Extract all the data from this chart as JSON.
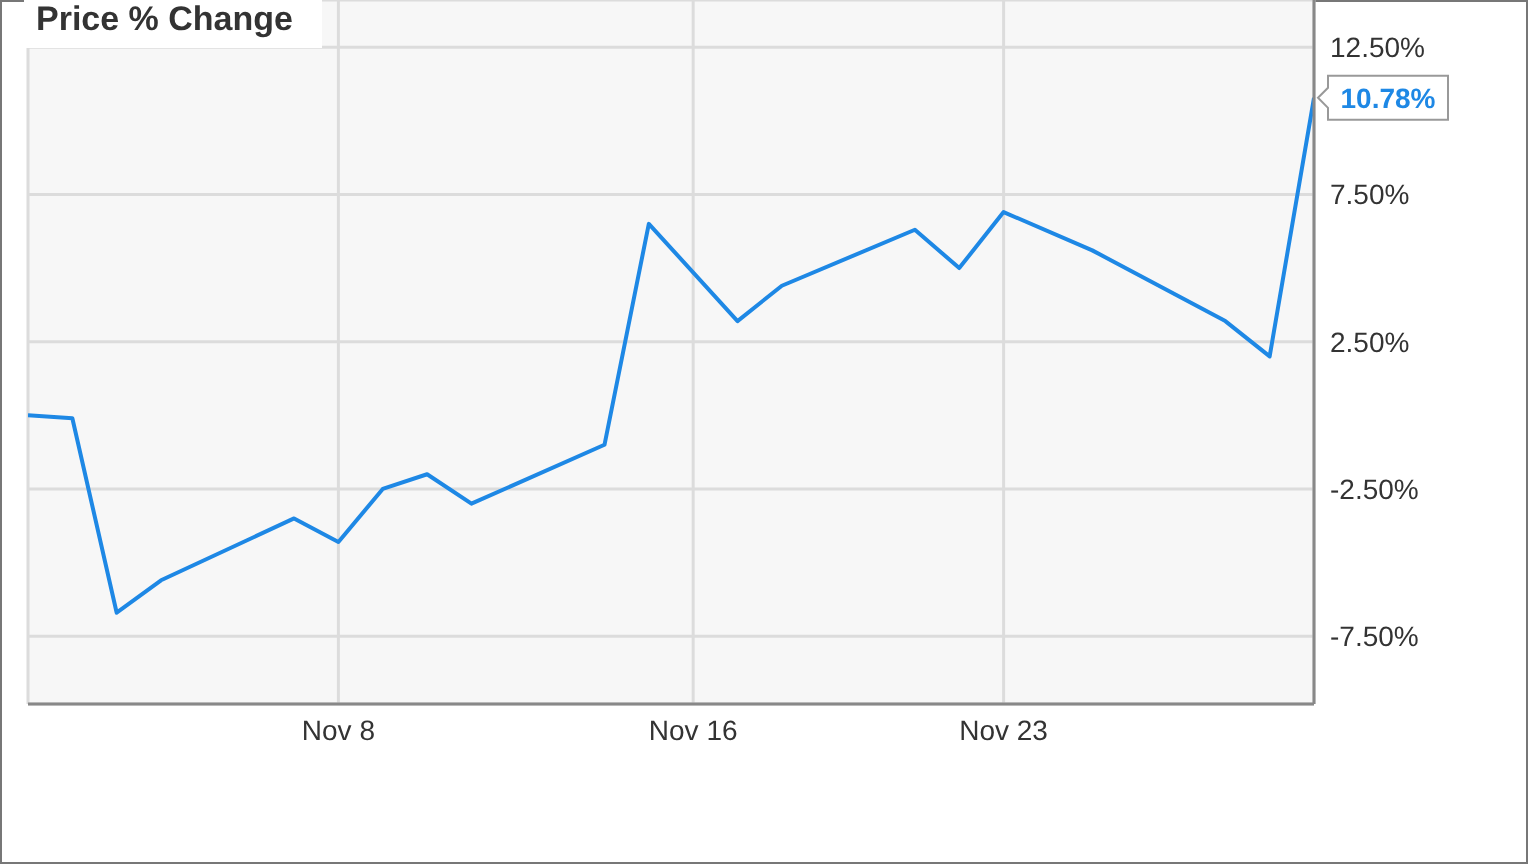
{
  "chart_data": {
    "type": "line",
    "title": "Price % Change",
    "x": [
      "--11-01",
      "--11-02",
      "--11-03",
      "--11-04",
      "--11-07",
      "--11-08",
      "--11-09",
      "--11-10",
      "--11-11",
      "--11-14",
      "--11-15",
      "--11-17",
      "--11-18",
      "--11-21",
      "--11-22",
      "--11-23",
      "--11-25",
      "--11-28",
      "--11-29",
      "--11-30"
    ],
    "series": [
      {
        "color": "#1e88e5",
        "values": [
          0.0,
          -0.1,
          -6.7,
          -5.6,
          -3.5,
          -4.3,
          -2.5,
          -2.0,
          -3.0,
          -1.0,
          6.5,
          3.2,
          4.4,
          6.3,
          5.0,
          6.9,
          5.6,
          3.2,
          2.0,
          10.78
        ]
      }
    ],
    "xlim": [
      "--11-01",
      "--11-30"
    ],
    "xticks": [
      {
        "value": "--11-08",
        "label": "Nov 8"
      },
      {
        "value": "--11-16",
        "label": "Nov 16"
      },
      {
        "value": "--11-23",
        "label": "Nov 23"
      }
    ],
    "ylim": [
      -9.8,
      14.1
    ],
    "yticks": [
      {
        "value": -7.5,
        "label": "-7.50%"
      },
      {
        "value": -2.5,
        "label": "-2.50%"
      },
      {
        "value": 2.5,
        "label": "2.50%"
      },
      {
        "value": 7.5,
        "label": "7.50%"
      },
      {
        "value": 12.5,
        "label": "12.50%"
      }
    ],
    "annotations": [
      {
        "text": "10.78%",
        "x": "--11-30",
        "y": 10.78
      }
    ],
    "grid": true,
    "marker": "none",
    "line_style": "solid"
  }
}
